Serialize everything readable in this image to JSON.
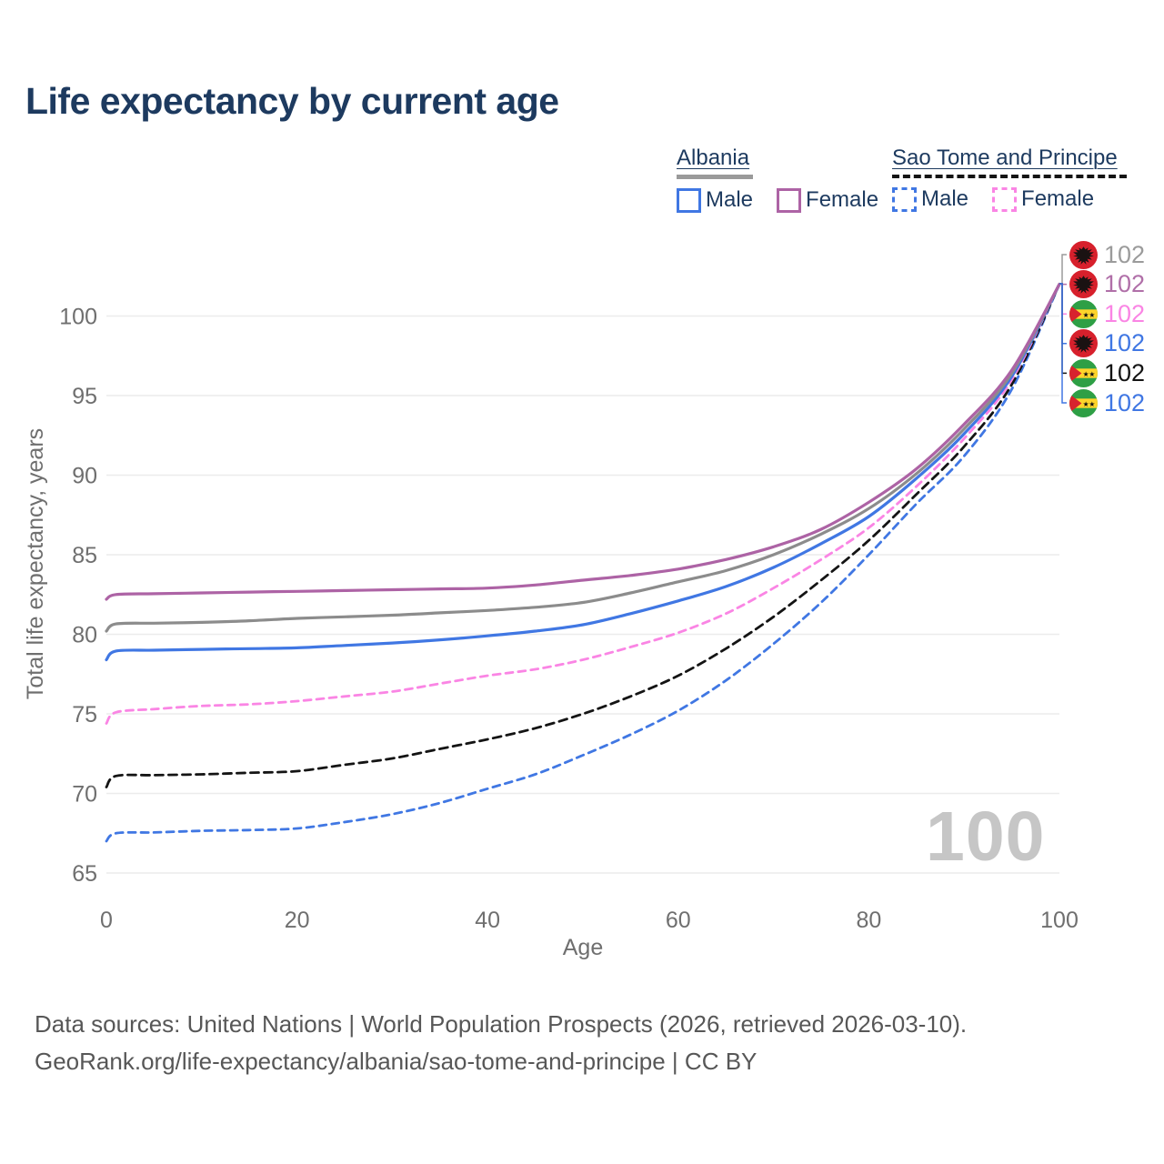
{
  "page": {
    "title": "Life expectancy by current age"
  },
  "legend": {
    "groups": [
      {
        "label": "Albania",
        "line_style": "solid",
        "underline_color": "#9a9a9a",
        "items": [
          {
            "label": "Male",
            "color": "#4077e3"
          },
          {
            "label": "Female",
            "color": "#ad63a5"
          }
        ]
      },
      {
        "label": "Sao Tome and Principe",
        "line_style": "dashed",
        "underline_color": "#141414",
        "items": [
          {
            "label": "Male",
            "color": "#4077e3"
          },
          {
            "label": "Female",
            "color": "#fa85e4"
          }
        ]
      }
    ]
  },
  "chart_data": {
    "type": "line",
    "title": "Life expectancy by current age",
    "xlabel": "Age",
    "ylabel": "Total life expectancy, years",
    "xlim": [
      0,
      100
    ],
    "ylim": [
      65,
      103
    ],
    "xticks": [
      0,
      20,
      40,
      60,
      80,
      100
    ],
    "yticks": [
      65,
      70,
      75,
      80,
      85,
      90,
      95,
      100
    ],
    "grid": "horizontal",
    "watermark": "100",
    "series": [
      {
        "name": "Sao Tome and Principe Male",
        "country": "Sao Tome and Principe",
        "sex": "male",
        "flag": "ST",
        "color": "#4077e3",
        "dash": true,
        "points": [
          [
            0,
            67.0
          ],
          [
            1,
            67.5
          ],
          [
            5,
            67.55
          ],
          [
            10,
            67.65
          ],
          [
            15,
            67.7
          ],
          [
            20,
            67.8
          ],
          [
            25,
            68.2
          ],
          [
            30,
            68.7
          ],
          [
            35,
            69.4
          ],
          [
            40,
            70.3
          ],
          [
            45,
            71.2
          ],
          [
            50,
            72.4
          ],
          [
            55,
            73.7
          ],
          [
            60,
            75.2
          ],
          [
            65,
            77.1
          ],
          [
            70,
            79.4
          ],
          [
            75,
            82.0
          ],
          [
            80,
            85.0
          ],
          [
            85,
            88.2
          ],
          [
            90,
            91.2
          ],
          [
            95,
            95.4
          ],
          [
            100,
            102
          ]
        ]
      },
      {
        "name": "Sao Tome and Principe (both sexes)",
        "country": "Sao Tome and Principe",
        "sex": "both",
        "flag": "ST",
        "color": "#141414",
        "dash": true,
        "points": [
          [
            0,
            70.4
          ],
          [
            1,
            71.1
          ],
          [
            5,
            71.15
          ],
          [
            10,
            71.2
          ],
          [
            15,
            71.3
          ],
          [
            20,
            71.4
          ],
          [
            25,
            71.8
          ],
          [
            30,
            72.2
          ],
          [
            35,
            72.8
          ],
          [
            40,
            73.4
          ],
          [
            45,
            74.1
          ],
          [
            50,
            75.0
          ],
          [
            55,
            76.1
          ],
          [
            60,
            77.4
          ],
          [
            65,
            79.1
          ],
          [
            70,
            81.1
          ],
          [
            75,
            83.4
          ],
          [
            80,
            85.9
          ],
          [
            85,
            88.8
          ],
          [
            90,
            91.8
          ],
          [
            95,
            95.7
          ],
          [
            100,
            102
          ]
        ]
      },
      {
        "name": "Sao Tome and Principe Female",
        "country": "Sao Tome and Principe",
        "sex": "female",
        "flag": "ST",
        "color": "#fa85e4",
        "dash": true,
        "points": [
          [
            0,
            74.4
          ],
          [
            1,
            75.1
          ],
          [
            5,
            75.3
          ],
          [
            10,
            75.5
          ],
          [
            15,
            75.6
          ],
          [
            20,
            75.8
          ],
          [
            25,
            76.1
          ],
          [
            30,
            76.4
          ],
          [
            35,
            76.9
          ],
          [
            40,
            77.4
          ],
          [
            45,
            77.8
          ],
          [
            50,
            78.4
          ],
          [
            55,
            79.2
          ],
          [
            60,
            80.1
          ],
          [
            65,
            81.3
          ],
          [
            70,
            82.9
          ],
          [
            75,
            84.7
          ],
          [
            80,
            86.7
          ],
          [
            85,
            89.3
          ],
          [
            90,
            92.3
          ],
          [
            95,
            96.0
          ],
          [
            100,
            102
          ]
        ]
      },
      {
        "name": "Albania Male",
        "country": "Albania",
        "sex": "male",
        "flag": "AL",
        "color": "#4077e3",
        "dash": false,
        "points": [
          [
            0,
            78.4
          ],
          [
            1,
            78.95
          ],
          [
            5,
            79.0
          ],
          [
            10,
            79.05
          ],
          [
            15,
            79.1
          ],
          [
            20,
            79.15
          ],
          [
            25,
            79.3
          ],
          [
            30,
            79.45
          ],
          [
            35,
            79.65
          ],
          [
            40,
            79.9
          ],
          [
            45,
            80.2
          ],
          [
            50,
            80.6
          ],
          [
            55,
            81.3
          ],
          [
            60,
            82.1
          ],
          [
            65,
            83.0
          ],
          [
            70,
            84.2
          ],
          [
            75,
            85.7
          ],
          [
            80,
            87.4
          ],
          [
            85,
            89.8
          ],
          [
            90,
            92.6
          ],
          [
            95,
            96.2
          ],
          [
            100,
            102
          ]
        ]
      },
      {
        "name": "Albania (both sexes)",
        "country": "Albania",
        "sex": "both",
        "flag": "AL",
        "color": "#8c8c8c",
        "dash": false,
        "points": [
          [
            0,
            80.2
          ],
          [
            1,
            80.65
          ],
          [
            5,
            80.7
          ],
          [
            10,
            80.75
          ],
          [
            15,
            80.85
          ],
          [
            20,
            81.0
          ],
          [
            25,
            81.1
          ],
          [
            30,
            81.2
          ],
          [
            35,
            81.35
          ],
          [
            40,
            81.5
          ],
          [
            45,
            81.7
          ],
          [
            50,
            82.0
          ],
          [
            55,
            82.6
          ],
          [
            60,
            83.3
          ],
          [
            65,
            84.0
          ],
          [
            70,
            85.0
          ],
          [
            75,
            86.3
          ],
          [
            80,
            87.9
          ],
          [
            85,
            90.1
          ],
          [
            90,
            92.9
          ],
          [
            95,
            96.4
          ],
          [
            100,
            102
          ]
        ]
      },
      {
        "name": "Albania Female",
        "country": "Albania",
        "sex": "female",
        "flag": "AL",
        "color": "#ad63a5",
        "dash": false,
        "points": [
          [
            0,
            82.2
          ],
          [
            1,
            82.5
          ],
          [
            5,
            82.55
          ],
          [
            10,
            82.6
          ],
          [
            15,
            82.65
          ],
          [
            20,
            82.7
          ],
          [
            25,
            82.75
          ],
          [
            30,
            82.8
          ],
          [
            35,
            82.85
          ],
          [
            40,
            82.9
          ],
          [
            45,
            83.1
          ],
          [
            50,
            83.4
          ],
          [
            55,
            83.7
          ],
          [
            60,
            84.1
          ],
          [
            65,
            84.7
          ],
          [
            70,
            85.5
          ],
          [
            75,
            86.6
          ],
          [
            80,
            88.3
          ],
          [
            85,
            90.4
          ],
          [
            90,
            93.2
          ],
          [
            95,
            96.6
          ],
          [
            100,
            102
          ]
        ]
      }
    ],
    "end_labels": [
      {
        "value": "102",
        "flag": "AL",
        "color": "#9b9b9b",
        "series": "Albania (both sexes)"
      },
      {
        "value": "102",
        "flag": "AL",
        "color": "#b06fa8",
        "series": "Albania Female"
      },
      {
        "value": "102",
        "flag": "ST",
        "color": "#fa85e4",
        "series": "Sao Tome and Principe Female"
      },
      {
        "value": "102",
        "flag": "AL",
        "color": "#4077e3",
        "series": "Albania Male"
      },
      {
        "value": "102",
        "flag": "ST",
        "color": "#141414",
        "series": "Sao Tome and Principe (both sexes)"
      },
      {
        "value": "102",
        "flag": "ST",
        "color": "#4077e3",
        "series": "Sao Tome and Principe Male"
      }
    ]
  },
  "footer": {
    "line1": "Data sources: United Nations | World Population Prospects (2026, retrieved 2026-03-10).",
    "line2": "GeoRank.org/life-expectancy/albania/sao-tome-and-principe | CC BY"
  }
}
